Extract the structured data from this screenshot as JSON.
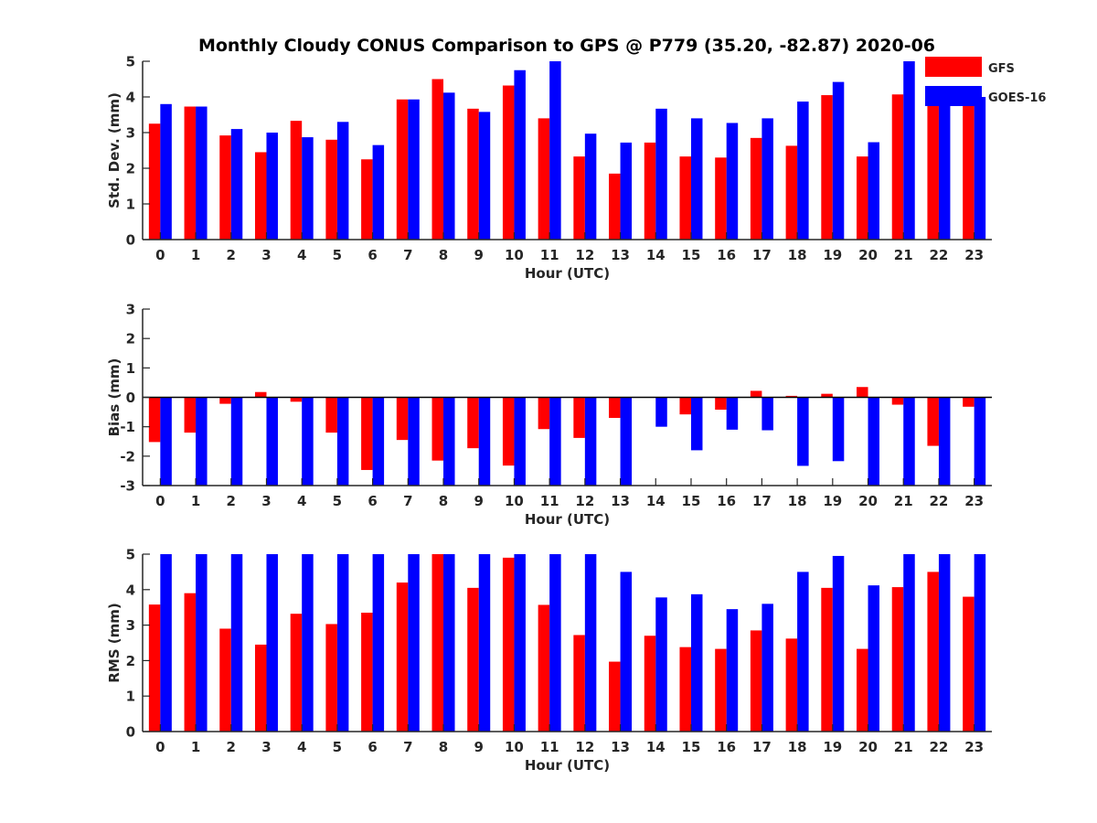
{
  "figure": {
    "title": "Monthly Cloudy CONUS Comparison to GPS @ P779 (35.20, -82.87) 2020-06"
  },
  "legend": {
    "placement": "top-right",
    "entries": [
      {
        "label": "GFS",
        "color": "#ff0000"
      },
      {
        "label": "GOES-16",
        "color": "#0000ff"
      }
    ]
  },
  "chart_data": [
    {
      "type": "bar",
      "categories": [
        "0",
        "1",
        "2",
        "3",
        "4",
        "5",
        "6",
        "7",
        "8",
        "9",
        "10",
        "11",
        "12",
        "13",
        "14",
        "15",
        "16",
        "17",
        "18",
        "19",
        "20",
        "21",
        "22",
        "23"
      ],
      "xlabel": "Hour (UTC)",
      "ylabel": "Std. Dev. (mm)",
      "ylim": [
        0,
        5
      ],
      "yticks": [
        0,
        1,
        2,
        3,
        4,
        5
      ],
      "grid": false,
      "series": [
        {
          "name": "GFS",
          "color": "#ff0000",
          "values": [
            3.25,
            3.73,
            2.92,
            2.45,
            3.33,
            2.8,
            2.25,
            3.93,
            4.5,
            3.67,
            4.32,
            3.4,
            2.33,
            1.85,
            2.72,
            2.33,
            2.3,
            2.85,
            2.63,
            4.05,
            2.33,
            4.07,
            4.17,
            3.8
          ]
        },
        {
          "name": "GOES-16",
          "color": "#0000ff",
          "values": [
            3.8,
            3.73,
            3.1,
            3.0,
            2.87,
            3.3,
            2.65,
            3.93,
            4.12,
            3.58,
            4.75,
            5.0,
            2.97,
            2.72,
            3.67,
            3.4,
            3.27,
            3.4,
            3.87,
            4.42,
            2.73,
            5.0,
            4.0,
            4.0
          ]
        }
      ]
    },
    {
      "type": "bar",
      "categories": [
        "0",
        "1",
        "2",
        "3",
        "4",
        "5",
        "6",
        "7",
        "8",
        "9",
        "10",
        "11",
        "12",
        "13",
        "14",
        "15",
        "16",
        "17",
        "18",
        "19",
        "20",
        "21",
        "22",
        "23"
      ],
      "xlabel": "Hour (UTC)",
      "ylabel": "Bias (mm)",
      "ylim": [
        -3,
        3
      ],
      "yticks": [
        -3,
        -2,
        -1,
        0,
        1,
        2,
        3
      ],
      "zero_line": true,
      "grid": false,
      "series": [
        {
          "name": "GFS",
          "color": "#ff0000",
          "values": [
            -1.52,
            -1.2,
            -0.22,
            0.18,
            -0.15,
            -1.2,
            -2.47,
            -1.45,
            -2.15,
            -1.73,
            -2.32,
            -1.08,
            -1.38,
            -0.7,
            0.0,
            -0.58,
            -0.42,
            0.22,
            0.05,
            0.12,
            0.35,
            -0.25,
            -1.65,
            -0.32
          ]
        },
        {
          "name": "GOES-16",
          "color": "#0000ff",
          "values": [
            -3.0,
            -3.0,
            -3.0,
            -3.0,
            -3.0,
            -3.0,
            -3.0,
            -3.0,
            -3.0,
            -3.0,
            -3.0,
            -3.0,
            -3.0,
            -3.0,
            -1.0,
            -1.8,
            -1.1,
            -1.12,
            -2.33,
            -2.17,
            -3.0,
            -3.0,
            -3.0,
            -3.0
          ]
        }
      ]
    },
    {
      "type": "bar",
      "categories": [
        "0",
        "1",
        "2",
        "3",
        "4",
        "5",
        "6",
        "7",
        "8",
        "9",
        "10",
        "11",
        "12",
        "13",
        "14",
        "15",
        "16",
        "17",
        "18",
        "19",
        "20",
        "21",
        "22",
        "23"
      ],
      "xlabel": "Hour (UTC)",
      "ylabel": "RMS (mm)",
      "ylim": [
        0,
        5
      ],
      "yticks": [
        0,
        1,
        2,
        3,
        4,
        5
      ],
      "grid": false,
      "series": [
        {
          "name": "GFS",
          "color": "#ff0000",
          "values": [
            3.58,
            3.9,
            2.9,
            2.45,
            3.32,
            3.03,
            3.35,
            4.2,
            5.0,
            4.05,
            4.9,
            3.57,
            2.72,
            1.97,
            2.7,
            2.38,
            2.33,
            2.85,
            2.62,
            4.05,
            2.33,
            4.07,
            4.5,
            3.8
          ]
        },
        {
          "name": "GOES-16",
          "color": "#0000ff",
          "values": [
            5.0,
            5.0,
            5.0,
            5.0,
            5.0,
            5.0,
            5.0,
            5.0,
            5.0,
            5.0,
            5.0,
            5.0,
            5.0,
            4.5,
            3.78,
            3.87,
            3.45,
            3.6,
            4.5,
            4.95,
            4.12,
            5.0,
            5.0,
            5.0
          ]
        }
      ]
    }
  ]
}
